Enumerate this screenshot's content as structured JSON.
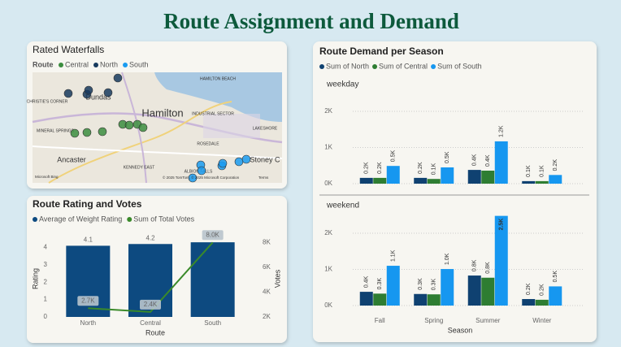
{
  "title": "Route Assignment and Demand",
  "chart_data": [
    {
      "type": "map",
      "title": "Rated Waterfalls",
      "legend_title": "Route",
      "series": [
        {
          "name": "Central",
          "color": "#3c8d3f"
        },
        {
          "name": "North",
          "color": "#173a5e"
        },
        {
          "name": "South",
          "color": "#1a9bf0"
        }
      ],
      "labels": [
        "HAMILTON BEACH",
        "Dundas",
        "Hamilton",
        "CHRISTIE'S CORNER",
        "INDUSTRIAL SECTOR",
        "MINERAL SPRINGS",
        "ROSEDALE",
        "Ancaster",
        "KENNEDY EAST",
        "ALBION FALLS",
        "Stoney C",
        "LAKESHORE"
      ],
      "attribution": "© 2025 TomTom, © 2025 Microsoft Corporation",
      "terms": "Terms",
      "provider": "Microsoft Bing"
    },
    {
      "type": "combo",
      "title": "Route Rating and Votes",
      "categories": [
        "North",
        "Central",
        "South"
      ],
      "series": [
        {
          "name": "Average of Weight Rating",
          "color": "#0d4a80",
          "type": "bar",
          "axis": "y",
          "values": [
            4.1,
            4.2,
            4.3
          ]
        },
        {
          "name": "Sum of Total Votes",
          "color": "#3a8a2a",
          "type": "line",
          "axis": "y2",
          "values": [
            2700,
            2400,
            8000
          ],
          "value_labels": [
            "2.7K",
            "2.4K",
            "8.0K"
          ]
        }
      ],
      "ylim": [
        0,
        4.4
      ],
      "yticks": [
        0,
        1,
        2,
        3,
        4
      ],
      "y2lim": [
        2000,
        8150
      ],
      "y2ticks": [
        {
          "value": 2000,
          "label": "2K"
        },
        {
          "value": 4000,
          "label": "4K"
        },
        {
          "value": 6000,
          "label": "6K"
        },
        {
          "value": 8000,
          "label": "8K"
        }
      ],
      "xlabel": "Route",
      "ylabel": "Rating",
      "y2label": "Votes"
    },
    {
      "type": "grouped-bar",
      "title": "Route Demand per Season",
      "panels": [
        "weekday",
        "weekend"
      ],
      "categories": [
        "Fall",
        "Spring",
        "Summer",
        "Winter"
      ],
      "series": [
        {
          "name": "Sum of North",
          "color": "#0f4171",
          "values": [
            [
              160,
              160,
              380,
              70
            ],
            [
              380,
              320,
              830,
              180
            ]
          ],
          "value_labels": [
            [
              "0.2K",
              "0.2K",
              "0.4K",
              "0.1K"
            ],
            [
              "0.4K",
              "0.3K",
              "0.8K",
              "0.2K"
            ]
          ]
        },
        {
          "name": "Sum of Central",
          "color": "#2e7d32",
          "values": [
            [
              160,
              130,
              360,
              70
            ],
            [
              330,
              310,
              770,
              160
            ]
          ],
          "value_labels": [
            [
              "0.2K",
              "0.1K",
              "0.4K",
              "0.1K"
            ],
            [
              "0.3K",
              "0.3K",
              "0.8K",
              "0.2K"
            ]
          ]
        },
        {
          "name": "Sum of South",
          "color": "#1697f0",
          "values": [
            [
              490,
              450,
              1170,
              240
            ],
            [
              1100,
              1010,
              2480,
              530
            ]
          ],
          "value_labels": [
            [
              "0.5K",
              "0.5K",
              "1.2K",
              "0.2K"
            ],
            [
              "1.1K",
              "1.0K",
              "2.5K",
              "0.5K"
            ]
          ]
        }
      ],
      "ylim": [
        0,
        2500
      ],
      "yticks": [
        {
          "value": 0,
          "label": "0K"
        },
        {
          "value": 1000,
          "label": "1K"
        },
        {
          "value": 2000,
          "label": "2K"
        }
      ],
      "xlabel": "Season",
      "grid": true
    }
  ]
}
